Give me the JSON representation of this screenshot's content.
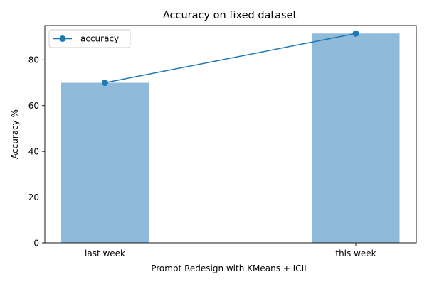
{
  "chart_data": {
    "type": "bar",
    "title": "Accuracy on fixed dataset",
    "xlabel": "Prompt Redesign with KMeans + ICIL",
    "ylabel": "Accuracy %",
    "categories": [
      "last week",
      "this week"
    ],
    "series": [
      {
        "name": "",
        "kind": "bar",
        "values": [
          70.0,
          91.5
        ],
        "color": "#8fbad9"
      },
      {
        "name": "accuracy",
        "kind": "line",
        "values": [
          70.0,
          91.5
        ],
        "color": "#1f77b4"
      }
    ],
    "ylim": [
      0,
      95
    ],
    "yticks": [
      0,
      20,
      40,
      60,
      80
    ],
    "legend": {
      "placement": "top-left",
      "entries": [
        "accuracy"
      ]
    },
    "grid": false
  }
}
